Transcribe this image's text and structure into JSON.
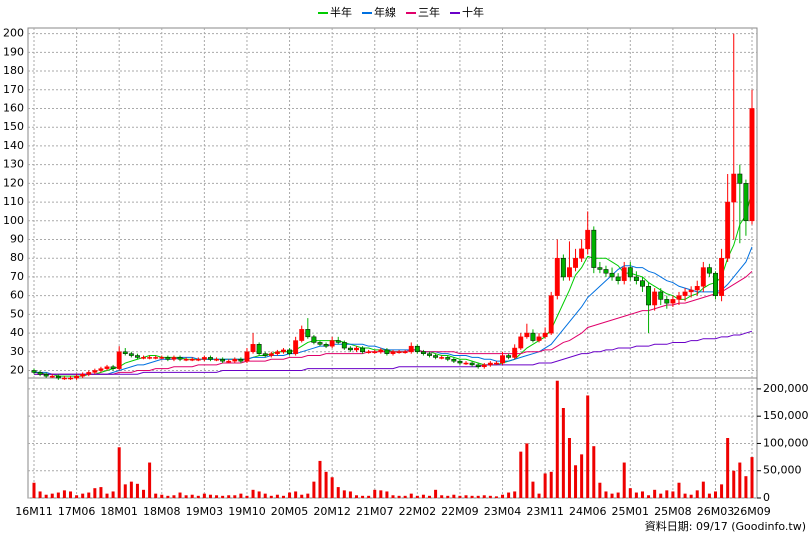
{
  "chart_data": [
    {
      "type": "candlestick",
      "categories": [
        "16M11",
        null,
        null,
        null,
        null,
        null,
        null,
        "17M06",
        null,
        null,
        null,
        null,
        null,
        null,
        "18M01",
        null,
        null,
        null,
        null,
        null,
        null,
        "18M08",
        null,
        null,
        null,
        null,
        null,
        null,
        "19M03",
        null,
        null,
        null,
        null,
        null,
        null,
        "19M10",
        null,
        null,
        null,
        null,
        null,
        null,
        "20M05",
        null,
        null,
        null,
        null,
        null,
        null,
        "20M12",
        null,
        null,
        null,
        null,
        null,
        null,
        "21M07",
        null,
        null,
        null,
        null,
        null,
        null,
        "22M02",
        null,
        null,
        null,
        null,
        null,
        null,
        "22M09",
        null,
        null,
        null,
        null,
        null,
        null,
        "23M04",
        null,
        null,
        null,
        null,
        null,
        null,
        "23M11",
        null,
        null,
        null,
        null,
        null,
        null,
        "24M06",
        null,
        null,
        null,
        null,
        null,
        null,
        "25M01",
        null,
        null,
        null,
        null,
        null,
        null,
        "25M08",
        null,
        null,
        null,
        null,
        null,
        null,
        "26M03",
        null,
        null,
        null,
        null,
        null,
        "26M09"
      ],
      "open": [
        20,
        19,
        18,
        17,
        17,
        16,
        16,
        16,
        17,
        18,
        19,
        20,
        21,
        22,
        21,
        30,
        29,
        28,
        27,
        27,
        27,
        27,
        27,
        26,
        27,
        26,
        26,
        26,
        26,
        27,
        26,
        26,
        25,
        25,
        26,
        25,
        30,
        34,
        29,
        28,
        29,
        30,
        31,
        29,
        36,
        42,
        38,
        35,
        34,
        33,
        36,
        35,
        32,
        31,
        32,
        30,
        30,
        30,
        31,
        29,
        30,
        30,
        30,
        33,
        30,
        29,
        28,
        27,
        27,
        26,
        25,
        24,
        24,
        23,
        22,
        23,
        24,
        24,
        28,
        27,
        32,
        38,
        40,
        36,
        38,
        40,
        60,
        80,
        70,
        75,
        80,
        85,
        95,
        75,
        74,
        72,
        70,
        68,
        75,
        70,
        68,
        65,
        55,
        62,
        58,
        56,
        58,
        60,
        62,
        63,
        65,
        75,
        72,
        60,
        80,
        110,
        125,
        120,
        100
      ],
      "high": [
        21,
        20,
        19,
        18,
        18,
        17,
        17,
        18,
        19,
        20,
        21,
        22,
        23,
        23,
        33,
        32,
        30,
        29,
        28,
        28,
        28,
        28,
        28,
        28,
        28,
        27,
        27,
        27,
        28,
        28,
        27,
        27,
        26,
        27,
        27,
        32,
        40,
        35,
        30,
        30,
        31,
        32,
        32,
        38,
        44,
        48,
        39,
        36,
        35,
        38,
        38,
        36,
        33,
        33,
        33,
        31,
        31,
        32,
        32,
        31,
        31,
        31,
        35,
        34,
        31,
        30,
        29,
        28,
        28,
        27,
        26,
        25,
        25,
        24,
        24,
        25,
        25,
        30,
        29,
        34,
        40,
        45,
        42,
        40,
        43,
        62,
        90,
        82,
        89,
        85,
        90,
        105,
        97,
        78,
        76,
        75,
        72,
        78,
        78,
        73,
        70,
        67,
        64,
        64,
        60,
        60,
        62,
        64,
        65,
        68,
        78,
        77,
        73,
        85,
        125,
        200,
        130,
        122,
        170
      ],
      "low": [
        18,
        17,
        16,
        16,
        15,
        15,
        15,
        15,
        16,
        17,
        18,
        19,
        20,
        20,
        20,
        28,
        27,
        26,
        26,
        26,
        26,
        26,
        25,
        25,
        25,
        25,
        25,
        25,
        25,
        25,
        25,
        24,
        24,
        24,
        24,
        24,
        29,
        28,
        27,
        27,
        28,
        29,
        28,
        28,
        35,
        37,
        34,
        33,
        32,
        32,
        34,
        31,
        30,
        30,
        29,
        29,
        29,
        29,
        28,
        28,
        29,
        29,
        29,
        29,
        28,
        27,
        26,
        26,
        25,
        24,
        23,
        23,
        22,
        21,
        21,
        22,
        23,
        23,
        26,
        26,
        31,
        37,
        35,
        35,
        37,
        39,
        58,
        68,
        68,
        73,
        78,
        82,
        72,
        72,
        70,
        68,
        66,
        66,
        68,
        66,
        62,
        40,
        52,
        55,
        53,
        54,
        55,
        57,
        59,
        60,
        62,
        70,
        58,
        57,
        78,
        90,
        88,
        92,
        98
      ],
      "close": [
        19,
        18,
        17,
        17,
        16,
        16,
        16,
        17,
        18,
        19,
        20,
        21,
        22,
        21,
        30,
        29,
        28,
        27,
        27,
        27,
        27,
        27,
        26,
        27,
        26,
        26,
        26,
        26,
        27,
        26,
        26,
        25,
        25,
        26,
        25,
        30,
        34,
        29,
        28,
        29,
        30,
        31,
        29,
        36,
        42,
        38,
        35,
        34,
        33,
        36,
        35,
        32,
        31,
        32,
        30,
        30,
        30,
        31,
        29,
        30,
        30,
        30,
        33,
        30,
        29,
        28,
        27,
        27,
        26,
        25,
        24,
        24,
        23,
        22,
        23,
        24,
        24,
        28,
        27,
        32,
        38,
        40,
        36,
        38,
        40,
        60,
        80,
        70,
        75,
        80,
        85,
        95,
        75,
        74,
        72,
        70,
        68,
        75,
        70,
        68,
        65,
        55,
        62,
        58,
        56,
        58,
        60,
        62,
        63,
        65,
        75,
        72,
        60,
        80,
        110,
        125,
        120,
        100,
        160
      ],
      "up_color": "#ff0000",
      "down_color": "#00b000",
      "series": [
        {
          "name": "半年",
          "color": "#00cc00",
          "values": [
            19,
            19,
            18,
            18,
            17,
            17,
            17,
            17,
            17,
            18,
            18,
            19,
            20,
            21,
            22,
            24,
            25,
            26,
            27,
            28,
            28,
            27,
            27,
            27,
            27,
            26,
            26,
            26,
            26,
            26,
            26,
            26,
            26,
            26,
            26,
            26,
            27,
            28,
            28,
            29,
            30,
            30,
            30,
            31,
            33,
            35,
            36,
            36,
            36,
            36,
            36,
            35,
            34,
            33,
            32,
            32,
            31,
            31,
            31,
            30,
            30,
            30,
            31,
            31,
            30,
            30,
            29,
            28,
            28,
            27,
            26,
            26,
            25,
            24,
            23,
            23,
            23,
            24,
            25,
            26,
            29,
            32,
            34,
            36,
            38,
            42,
            49,
            56,
            63,
            71,
            75,
            81,
            80,
            80,
            80,
            78,
            76,
            72,
            72,
            71,
            70,
            67,
            65,
            63,
            61,
            60,
            58,
            58,
            60,
            61,
            64,
            66,
            67,
            70,
            80,
            87,
            98,
            103,
            116
          ]
        },
        {
          "name": "年線",
          "color": "#0070e0",
          "values": [
            19,
            19,
            19,
            18,
            18,
            18,
            18,
            18,
            18,
            18,
            18,
            18,
            18,
            19,
            20,
            21,
            22,
            23,
            23,
            24,
            25,
            26,
            26,
            26,
            27,
            27,
            27,
            26,
            26,
            26,
            26,
            26,
            26,
            26,
            26,
            26,
            27,
            27,
            27,
            28,
            28,
            28,
            29,
            29,
            30,
            31,
            32,
            33,
            33,
            34,
            34,
            34,
            34,
            34,
            34,
            33,
            33,
            32,
            31,
            31,
            31,
            31,
            31,
            31,
            30,
            30,
            30,
            29,
            29,
            28,
            28,
            28,
            27,
            27,
            26,
            26,
            25,
            25,
            25,
            26,
            27,
            28,
            29,
            30,
            32,
            34,
            38,
            42,
            46,
            50,
            54,
            59,
            62,
            65,
            68,
            71,
            74,
            76,
            76,
            75,
            75,
            73,
            72,
            70,
            68,
            67,
            65,
            64,
            63,
            62,
            62,
            62,
            62,
            63,
            66,
            70,
            74,
            78,
            86
          ]
        },
        {
          "name": "三年",
          "color": "#e0006a",
          "values": [
            18,
            18,
            18,
            18,
            18,
            18,
            18,
            18,
            18,
            18,
            18,
            18,
            18,
            18,
            19,
            19,
            19,
            20,
            20,
            20,
            21,
            21,
            21,
            22,
            22,
            22,
            22,
            23,
            23,
            23,
            23,
            24,
            24,
            24,
            24,
            25,
            25,
            25,
            25,
            26,
            26,
            26,
            27,
            27,
            27,
            28,
            28,
            28,
            29,
            29,
            29,
            29,
            29,
            29,
            29,
            30,
            30,
            30,
            30,
            30,
            30,
            30,
            31,
            31,
            30,
            30,
            30,
            30,
            30,
            30,
            29,
            29,
            29,
            29,
            29,
            29,
            29,
            29,
            29,
            29,
            29,
            30,
            30,
            30,
            31,
            31,
            33,
            35,
            36,
            38,
            40,
            43,
            44,
            45,
            46,
            47,
            48,
            49,
            50,
            51,
            52,
            52,
            53,
            54,
            55,
            55,
            56,
            56,
            57,
            58,
            59,
            60,
            61,
            62,
            64,
            66,
            68,
            70,
            73
          ]
        },
        {
          "name": "十年",
          "color": "#6a00c8",
          "values": [
            18,
            18,
            18,
            18,
            18,
            18,
            18,
            18,
            18,
            18,
            18,
            18,
            18,
            18,
            18,
            18,
            18,
            18,
            19,
            19,
            19,
            19,
            19,
            19,
            19,
            19,
            19,
            19,
            19,
            19,
            19,
            20,
            20,
            20,
            20,
            20,
            20,
            20,
            20,
            20,
            20,
            20,
            20,
            20,
            20,
            21,
            21,
            21,
            21,
            21,
            21,
            21,
            21,
            21,
            21,
            21,
            21,
            21,
            21,
            21,
            22,
            22,
            22,
            22,
            22,
            22,
            22,
            22,
            22,
            22,
            22,
            22,
            22,
            22,
            23,
            23,
            23,
            23,
            23,
            23,
            23,
            23,
            23,
            24,
            24,
            24,
            25,
            26,
            27,
            28,
            29,
            29,
            30,
            30,
            31,
            31,
            32,
            32,
            32,
            33,
            33,
            33,
            34,
            34,
            34,
            35,
            35,
            35,
            36,
            36,
            37,
            37,
            37,
            38,
            38,
            39,
            39,
            40,
            41
          ]
        }
      ],
      "ylim": [
        16,
        203
      ],
      "yticks": [
        20,
        30,
        40,
        50,
        60,
        70,
        80,
        90,
        100,
        110,
        120,
        130,
        140,
        150,
        160,
        170,
        180,
        190,
        200
      ],
      "grid": true
    },
    {
      "type": "bar",
      "color": "#ee0000",
      "values": [
        28000,
        12000,
        6000,
        8000,
        10000,
        14000,
        12000,
        5000,
        8000,
        10000,
        18000,
        20000,
        8000,
        12000,
        93000,
        25000,
        30000,
        26000,
        15000,
        65000,
        8000,
        6000,
        4000,
        5000,
        10000,
        5000,
        6000,
        4000,
        8000,
        6000,
        5000,
        4000,
        5000,
        5000,
        8000,
        4000,
        15000,
        12000,
        8000,
        4000,
        6000,
        4000,
        10000,
        12000,
        6000,
        8000,
        30000,
        68000,
        48000,
        38000,
        20000,
        14000,
        12000,
        5000,
        4000,
        4000,
        15000,
        14000,
        12000,
        5000,
        4000,
        4000,
        8000,
        4000,
        6000,
        4000,
        15000,
        5000,
        4000,
        6000,
        4000,
        5000,
        4000,
        4000,
        5000,
        4000,
        3000,
        6000,
        10000,
        12000,
        85000,
        100000,
        30000,
        8000,
        45000,
        48000,
        215000,
        165000,
        110000,
        60000,
        80000,
        188000,
        95000,
        28000,
        12000,
        8000,
        10000,
        65000,
        18000,
        10000,
        12000,
        5000,
        15000,
        8000,
        14000,
        12000,
        28000,
        8000,
        6000,
        14000,
        30000,
        8000,
        12000,
        25000,
        110000,
        50000,
        65000,
        40000,
        75000
      ],
      "ylim": [
        0,
        220000
      ],
      "yticks": [
        0,
        {
          "value": 50000,
          "label": "50,000"
        },
        {
          "value": 100000,
          "label": "100,000"
        },
        {
          "value": 150000,
          "label": "150,000"
        },
        {
          "value": 200000,
          "label": "200,000"
        }
      ],
      "grid": true
    }
  ],
  "footer": "資料日期: 09/17  (Goodinfo.tw)"
}
